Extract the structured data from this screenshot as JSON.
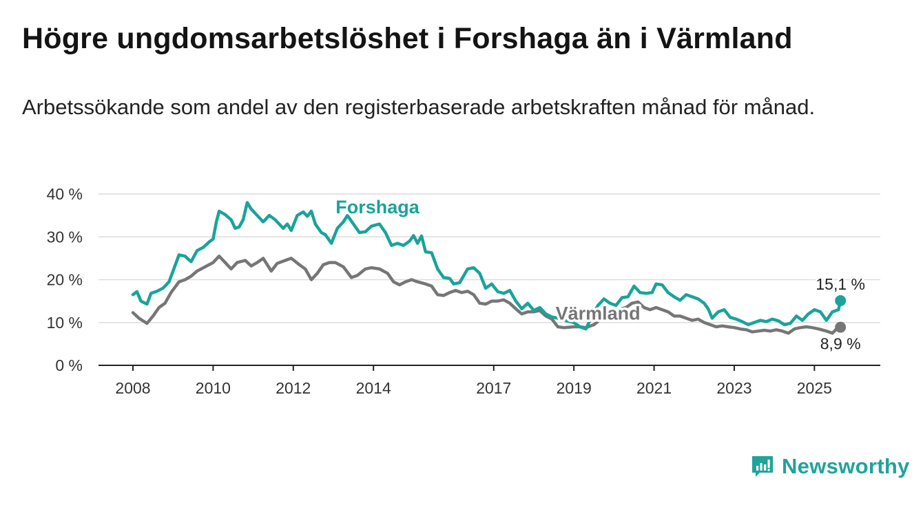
{
  "title": "Högre ungdomsarbetslöshet i Forshaga än i Värmland",
  "subtitle": "Arbetssökande som andel av den registerbaserade arbetskraften månad för månad.",
  "brand": {
    "name": "Newsworthy",
    "icon": "newsworthy-logo-icon",
    "color": "#20a39a"
  },
  "chart_data": {
    "type": "line",
    "title": "Högre ungdomsarbetslöshet i Forshaga än i Värmland",
    "subtitle": "Arbetssökande som andel av den registerbaserade arbetskraften månad för månad.",
    "xlabel": "",
    "ylabel": "",
    "xlim": [
      2008.0,
      2025.75
    ],
    "ylim": [
      0,
      40
    ],
    "grid": true,
    "legend": "inline labels",
    "y_ticks": [
      {
        "value": 0,
        "label": "0 %"
      },
      {
        "value": 10,
        "label": "10 %"
      },
      {
        "value": 20,
        "label": "20 %"
      },
      {
        "value": 30,
        "label": "30 %"
      },
      {
        "value": 40,
        "label": "40 %"
      }
    ],
    "x_ticks": [
      {
        "value": 2008,
        "label": "2008"
      },
      {
        "value": 2010,
        "label": "2010"
      },
      {
        "value": 2012,
        "label": "2012"
      },
      {
        "value": 2014,
        "label": "2014"
      },
      {
        "value": 2017,
        "label": "2017"
      },
      {
        "value": 2019,
        "label": "2019"
      },
      {
        "value": 2021,
        "label": "2021"
      },
      {
        "value": 2023,
        "label": "2023"
      },
      {
        "value": 2025,
        "label": "2025"
      }
    ],
    "series": [
      {
        "name": "Forshaga",
        "color": "#1aa39a",
        "end_label": "15,1 %",
        "points": [
          [
            2008.0,
            16.5
          ],
          [
            2008.1,
            17.2
          ],
          [
            2008.2,
            15.0
          ],
          [
            2008.35,
            14.3
          ],
          [
            2008.45,
            16.8
          ],
          [
            2008.6,
            17.3
          ],
          [
            2008.75,
            18.0
          ],
          [
            2008.9,
            19.5
          ],
          [
            2009.0,
            22.0
          ],
          [
            2009.15,
            25.8
          ],
          [
            2009.3,
            25.5
          ],
          [
            2009.45,
            24.2
          ],
          [
            2009.6,
            26.8
          ],
          [
            2009.75,
            27.5
          ],
          [
            2009.9,
            28.8
          ],
          [
            2010.0,
            29.5
          ],
          [
            2010.08,
            33.5
          ],
          [
            2010.15,
            36.0
          ],
          [
            2010.3,
            35.2
          ],
          [
            2010.45,
            34.0
          ],
          [
            2010.55,
            32.0
          ],
          [
            2010.65,
            32.3
          ],
          [
            2010.75,
            34.0
          ],
          [
            2010.85,
            38.0
          ],
          [
            2010.95,
            36.5
          ],
          [
            2011.1,
            35.0
          ],
          [
            2011.25,
            33.5
          ],
          [
            2011.4,
            35.0
          ],
          [
            2011.55,
            34.0
          ],
          [
            2011.65,
            33.0
          ],
          [
            2011.75,
            32.0
          ],
          [
            2011.85,
            33.0
          ],
          [
            2011.95,
            31.5
          ],
          [
            2012.1,
            35.0
          ],
          [
            2012.25,
            35.8
          ],
          [
            2012.35,
            34.8
          ],
          [
            2012.45,
            36.0
          ],
          [
            2012.55,
            33.0
          ],
          [
            2012.7,
            31.0
          ],
          [
            2012.8,
            30.5
          ],
          [
            2012.95,
            28.5
          ],
          [
            2013.1,
            32.0
          ],
          [
            2013.25,
            33.5
          ],
          [
            2013.35,
            35.0
          ],
          [
            2013.5,
            33.0
          ],
          [
            2013.65,
            31.0
          ],
          [
            2013.8,
            31.2
          ],
          [
            2013.95,
            32.5
          ],
          [
            2014.15,
            33.0
          ],
          [
            2014.3,
            31.0
          ],
          [
            2014.45,
            28.0
          ],
          [
            2014.6,
            28.5
          ],
          [
            2014.75,
            28.0
          ],
          [
            2014.9,
            29.0
          ],
          [
            2015.0,
            30.3
          ],
          [
            2015.1,
            28.5
          ],
          [
            2015.2,
            30.2
          ],
          [
            2015.3,
            26.5
          ],
          [
            2015.45,
            26.3
          ],
          [
            2015.6,
            22.5
          ],
          [
            2015.75,
            20.5
          ],
          [
            2015.9,
            20.3
          ],
          [
            2016.0,
            19.0
          ],
          [
            2016.15,
            19.3
          ],
          [
            2016.35,
            22.5
          ],
          [
            2016.5,
            22.8
          ],
          [
            2016.65,
            21.5
          ],
          [
            2016.8,
            18.0
          ],
          [
            2016.95,
            19.0
          ],
          [
            2017.1,
            17.2
          ],
          [
            2017.25,
            16.8
          ],
          [
            2017.4,
            17.5
          ],
          [
            2017.55,
            15.0
          ],
          [
            2017.7,
            13.2
          ],
          [
            2017.85,
            14.5
          ],
          [
            2018.0,
            12.8
          ],
          [
            2018.15,
            13.5
          ],
          [
            2018.3,
            12.0
          ],
          [
            2018.45,
            11.3
          ],
          [
            2018.6,
            11.0
          ],
          [
            2018.75,
            10.5
          ],
          [
            2019.0,
            10.0
          ],
          [
            2019.15,
            9.0
          ],
          [
            2019.3,
            8.5
          ],
          [
            2019.45,
            11.5
          ],
          [
            2019.6,
            14.0
          ],
          [
            2019.75,
            15.5
          ],
          [
            2019.9,
            14.5
          ],
          [
            2020.05,
            14.0
          ],
          [
            2020.2,
            15.8
          ],
          [
            2020.35,
            16.0
          ],
          [
            2020.5,
            18.5
          ],
          [
            2020.65,
            17.0
          ],
          [
            2020.8,
            16.8
          ],
          [
            2020.95,
            17.0
          ],
          [
            2021.05,
            19.0
          ],
          [
            2021.2,
            18.8
          ],
          [
            2021.35,
            17.0
          ],
          [
            2021.5,
            16.0
          ],
          [
            2021.65,
            15.2
          ],
          [
            2021.8,
            16.5
          ],
          [
            2021.95,
            16.0
          ],
          [
            2022.1,
            15.5
          ],
          [
            2022.25,
            14.5
          ],
          [
            2022.35,
            13.2
          ],
          [
            2022.45,
            11.0
          ],
          [
            2022.6,
            12.5
          ],
          [
            2022.75,
            13.0
          ],
          [
            2022.9,
            11.2
          ],
          [
            2023.05,
            10.8
          ],
          [
            2023.2,
            10.2
          ],
          [
            2023.35,
            9.5
          ],
          [
            2023.5,
            10.0
          ],
          [
            2023.65,
            10.5
          ],
          [
            2023.8,
            10.2
          ],
          [
            2023.95,
            10.8
          ],
          [
            2024.1,
            10.4
          ],
          [
            2024.25,
            9.5
          ],
          [
            2024.4,
            9.8
          ],
          [
            2024.55,
            11.5
          ],
          [
            2024.7,
            10.5
          ],
          [
            2024.85,
            12.0
          ],
          [
            2025.0,
            13.0
          ],
          [
            2025.15,
            12.5
          ],
          [
            2025.3,
            10.5
          ],
          [
            2025.45,
            12.5
          ],
          [
            2025.6,
            13.0
          ],
          [
            2025.65,
            15.1
          ]
        ]
      },
      {
        "name": "Värmland",
        "color": "#767676",
        "end_label": "8,9 %",
        "points": [
          [
            2008.0,
            12.3
          ],
          [
            2008.15,
            11.0
          ],
          [
            2008.35,
            9.8
          ],
          [
            2008.5,
            11.5
          ],
          [
            2008.65,
            13.5
          ],
          [
            2008.8,
            14.5
          ],
          [
            2008.95,
            17.0
          ],
          [
            2009.15,
            19.5
          ],
          [
            2009.3,
            20.0
          ],
          [
            2009.45,
            20.8
          ],
          [
            2009.6,
            22.0
          ],
          [
            2009.8,
            23.0
          ],
          [
            2010.0,
            24.0
          ],
          [
            2010.15,
            25.5
          ],
          [
            2010.3,
            24.0
          ],
          [
            2010.45,
            22.5
          ],
          [
            2010.6,
            24.0
          ],
          [
            2010.8,
            24.5
          ],
          [
            2010.95,
            23.2
          ],
          [
            2011.1,
            24.0
          ],
          [
            2011.25,
            25.0
          ],
          [
            2011.45,
            22.0
          ],
          [
            2011.6,
            23.8
          ],
          [
            2011.8,
            24.5
          ],
          [
            2011.95,
            25.0
          ],
          [
            2012.15,
            23.5
          ],
          [
            2012.3,
            22.5
          ],
          [
            2012.45,
            20.0
          ],
          [
            2012.6,
            21.5
          ],
          [
            2012.75,
            23.5
          ],
          [
            2012.9,
            24.0
          ],
          [
            2013.05,
            24.0
          ],
          [
            2013.25,
            23.0
          ],
          [
            2013.45,
            20.5
          ],
          [
            2013.6,
            21.0
          ],
          [
            2013.8,
            22.5
          ],
          [
            2013.95,
            22.8
          ],
          [
            2014.15,
            22.5
          ],
          [
            2014.35,
            21.5
          ],
          [
            2014.5,
            19.5
          ],
          [
            2014.65,
            18.8
          ],
          [
            2014.8,
            19.5
          ],
          [
            2014.95,
            20.0
          ],
          [
            2015.1,
            19.5
          ],
          [
            2015.3,
            19.0
          ],
          [
            2015.45,
            18.5
          ],
          [
            2015.6,
            16.5
          ],
          [
            2015.75,
            16.3
          ],
          [
            2015.9,
            17.0
          ],
          [
            2016.05,
            17.5
          ],
          [
            2016.2,
            17.0
          ],
          [
            2016.35,
            17.3
          ],
          [
            2016.5,
            16.5
          ],
          [
            2016.65,
            14.5
          ],
          [
            2016.8,
            14.3
          ],
          [
            2016.95,
            15.0
          ],
          [
            2017.1,
            15.0
          ],
          [
            2017.25,
            15.3
          ],
          [
            2017.4,
            14.5
          ],
          [
            2017.55,
            13.2
          ],
          [
            2017.7,
            12.0
          ],
          [
            2017.85,
            12.5
          ],
          [
            2018.0,
            12.5
          ],
          [
            2018.15,
            12.8
          ],
          [
            2018.3,
            11.5
          ],
          [
            2018.45,
            10.8
          ],
          [
            2018.6,
            9.0
          ],
          [
            2018.75,
            8.8
          ],
          [
            2019.0,
            9.0
          ],
          [
            2019.15,
            9.0
          ],
          [
            2019.3,
            8.8
          ],
          [
            2019.5,
            9.5
          ],
          [
            2019.7,
            11.0
          ],
          [
            2019.9,
            12.5
          ],
          [
            2020.1,
            13.0
          ],
          [
            2020.3,
            13.5
          ],
          [
            2020.45,
            14.5
          ],
          [
            2020.6,
            14.8
          ],
          [
            2020.75,
            13.5
          ],
          [
            2020.9,
            13.0
          ],
          [
            2021.05,
            13.5
          ],
          [
            2021.2,
            13.0
          ],
          [
            2021.35,
            12.5
          ],
          [
            2021.5,
            11.5
          ],
          [
            2021.65,
            11.5
          ],
          [
            2021.8,
            11.0
          ],
          [
            2021.95,
            10.5
          ],
          [
            2022.1,
            10.8
          ],
          [
            2022.25,
            10.0
          ],
          [
            2022.4,
            9.5
          ],
          [
            2022.55,
            9.0
          ],
          [
            2022.7,
            9.2
          ],
          [
            2022.85,
            9.0
          ],
          [
            2023.0,
            8.8
          ],
          [
            2023.15,
            8.5
          ],
          [
            2023.3,
            8.3
          ],
          [
            2023.45,
            7.8
          ],
          [
            2023.6,
            8.0
          ],
          [
            2023.75,
            8.2
          ],
          [
            2023.9,
            8.0
          ],
          [
            2024.05,
            8.3
          ],
          [
            2024.2,
            8.0
          ],
          [
            2024.35,
            7.5
          ],
          [
            2024.5,
            8.5
          ],
          [
            2024.65,
            8.8
          ],
          [
            2024.8,
            9.0
          ],
          [
            2024.95,
            8.8
          ],
          [
            2025.1,
            8.5
          ],
          [
            2025.3,
            8.0
          ],
          [
            2025.45,
            7.5
          ],
          [
            2025.55,
            8.5
          ],
          [
            2025.65,
            8.9
          ]
        ]
      }
    ],
    "annotations": [
      {
        "series": "Forshaga",
        "text": "Forshaga",
        "x": 2014.1,
        "y": 35.5
      },
      {
        "series": "Värmland",
        "text": "Värmland",
        "x": 2019.6,
        "y": 10.7
      }
    ]
  }
}
